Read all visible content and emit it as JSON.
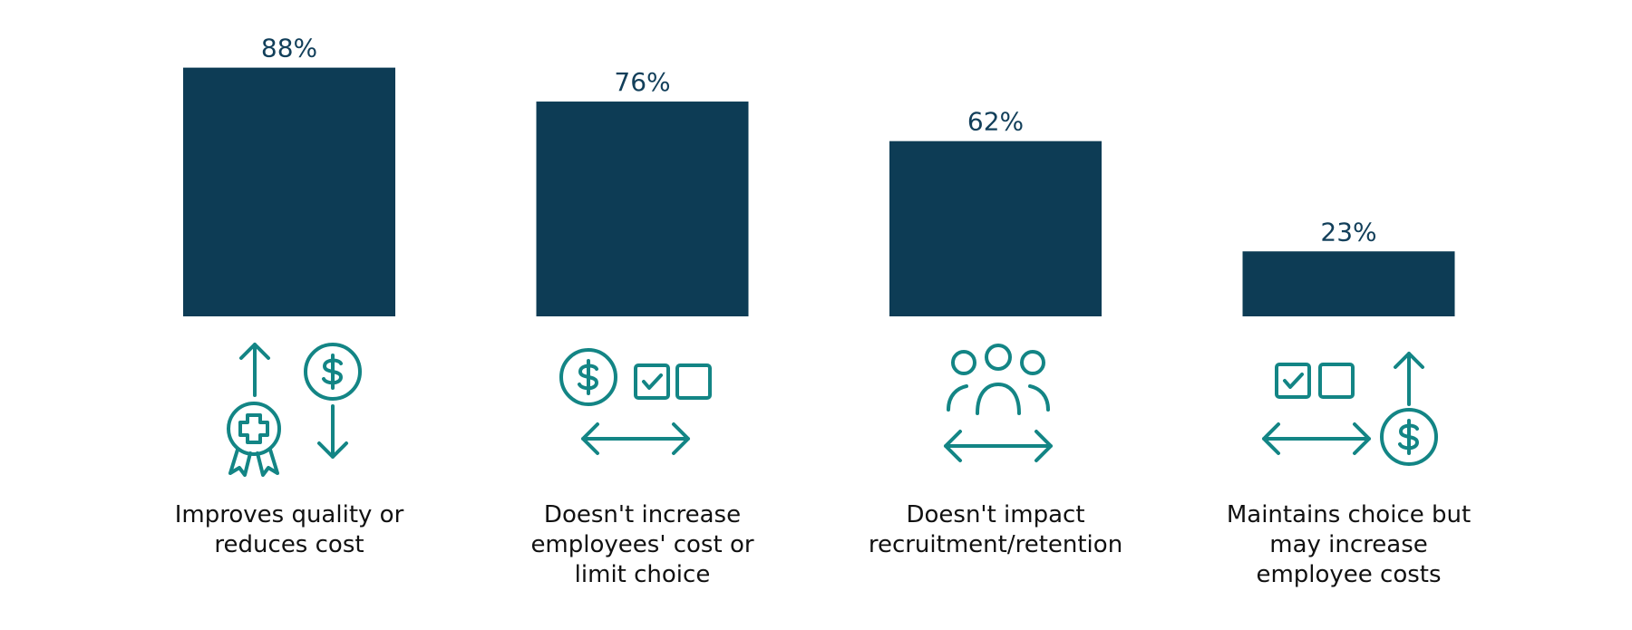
{
  "chart_data": {
    "type": "bar",
    "categories": [
      "Improves quality or reduces cost",
      "Doesn't increase employees' cost or limit choice",
      "Doesn't impact recruitment/retention",
      "Maintains choice but may increase employee costs"
    ],
    "values": [
      88,
      76,
      62,
      23
    ],
    "value_labels": [
      "88%",
      "76%",
      "62%",
      "23%"
    ],
    "color": "#0d3c55"
  }
}
